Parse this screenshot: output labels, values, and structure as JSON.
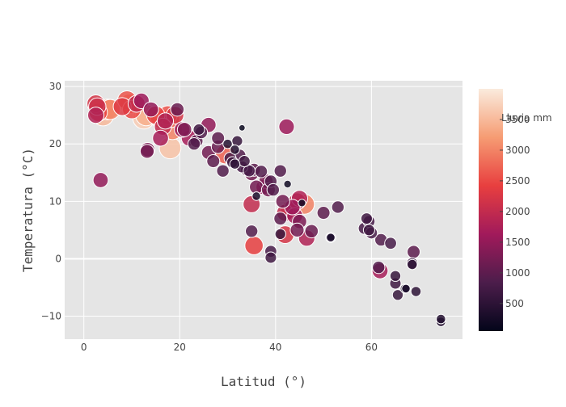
{
  "chart_data": {
    "type": "scatter",
    "title": "",
    "xlabel": "Latitud (°)",
    "ylabel": "Temperatura (°C)",
    "xlim": [
      -4,
      79
    ],
    "ylim": [
      -14,
      31
    ],
    "xticks": [
      0,
      20,
      40,
      60
    ],
    "yticks": [
      -10,
      0,
      10,
      20,
      30
    ],
    "grid": true,
    "background_color": "#e5e5e5",
    "colorbar": {
      "title": "Lluvia mm",
      "range": [
        50,
        4000
      ],
      "ticks": [
        500,
        1000,
        1500,
        2000,
        2500,
        3000,
        3500
      ],
      "colorscale": [
        "#03051a",
        "#4c1d4b",
        "#a11a5b",
        "#e83f3f",
        "#f69c73",
        "#faebdd"
      ]
    },
    "size_encodes": "Lluvia mm",
    "points": [
      [
        2.5,
        27,
        2200
      ],
      [
        2.8,
        26.5,
        2100
      ],
      [
        3,
        25.5,
        2400
      ],
      [
        4,
        25,
        3500
      ],
      [
        2.5,
        25,
        1800
      ],
      [
        5,
        26,
        3200
      ],
      [
        5.5,
        26,
        3000
      ],
      [
        3.5,
        13.7,
        1500
      ],
      [
        8,
        26.5,
        2300
      ],
      [
        9,
        27.6,
        2600
      ],
      [
        9.5,
        27,
        2900
      ],
      [
        10,
        26,
        2500
      ],
      [
        11,
        27,
        2000
      ],
      [
        12,
        27.5,
        1600
      ],
      [
        12.5,
        24.5,
        3700
      ],
      [
        13,
        25,
        3400
      ],
      [
        13.2,
        18.7,
        1200
      ],
      [
        13.3,
        19,
        1300
      ],
      [
        14,
        26,
        1500
      ],
      [
        15,
        25,
        2400
      ],
      [
        16,
        24.5,
        3000
      ],
      [
        16,
        21,
        1700
      ],
      [
        16.5,
        23,
        2000
      ],
      [
        17,
        24,
        1800
      ],
      [
        17.5,
        25,
        2600
      ],
      [
        18,
        24.5,
        2800
      ],
      [
        18,
        19.3,
        3600
      ],
      [
        18.5,
        22.5,
        3000
      ],
      [
        19,
        25,
        2200
      ],
      [
        19.5,
        26,
        1100
      ],
      [
        20.5,
        22.5,
        1600
      ],
      [
        21,
        22.5,
        1300
      ],
      [
        22,
        21,
        1700
      ],
      [
        23,
        20,
        900
      ],
      [
        23.5,
        20.5,
        1000
      ],
      [
        24,
        22.5,
        700
      ],
      [
        24.5,
        22,
        900
      ],
      [
        26,
        23.3,
        1500
      ],
      [
        26,
        18.5,
        1200
      ],
      [
        27,
        17,
        1000
      ],
      [
        28,
        19.5,
        1100
      ],
      [
        28,
        21,
        1000
      ],
      [
        29,
        15.3,
        900
      ],
      [
        29.5,
        18.2,
        2700
      ],
      [
        30,
        20,
        400
      ],
      [
        30.5,
        17.5,
        800
      ],
      [
        31,
        16.8,
        700
      ],
      [
        31.5,
        19,
        400
      ],
      [
        31.5,
        16.5,
        500
      ],
      [
        32,
        20.5,
        600
      ],
      [
        32.5,
        18,
        900
      ],
      [
        33,
        16,
        800
      ],
      [
        33,
        22.8,
        100
      ],
      [
        33.5,
        17,
        700
      ],
      [
        34,
        15.5,
        900
      ],
      [
        34.5,
        15.3,
        800
      ],
      [
        35,
        14.8,
        1200
      ],
      [
        35,
        9.5,
        2000
      ],
      [
        35,
        4.8,
        900
      ],
      [
        35.5,
        15.5,
        1000
      ],
      [
        35.5,
        2.3,
        2400
      ],
      [
        36,
        10.9,
        300
      ],
      [
        36,
        12.5,
        1200
      ],
      [
        37,
        15.2,
        900
      ],
      [
        37.5,
        12.5,
        1500
      ],
      [
        38,
        13.5,
        1300
      ],
      [
        38.5,
        12,
        1200
      ],
      [
        39,
        1.3,
        800
      ],
      [
        39,
        0.2,
        700
      ],
      [
        39,
        13.5,
        900
      ],
      [
        39.5,
        12,
        900
      ],
      [
        41,
        15.3,
        900
      ],
      [
        41,
        7,
        1000
      ],
      [
        41,
        4.3,
        600
      ],
      [
        41.5,
        10,
        1200
      ],
      [
        42,
        4.2,
        2200
      ],
      [
        42,
        8,
        2000
      ],
      [
        42.3,
        23,
        1600
      ],
      [
        42.5,
        13,
        200
      ],
      [
        43,
        8.5,
        2500
      ],
      [
        43.5,
        9,
        1600
      ],
      [
        44,
        7.5,
        1700
      ],
      [
        44.5,
        5,
        1200
      ],
      [
        44.5,
        10,
        2000
      ],
      [
        45,
        10.5,
        1800
      ],
      [
        45,
        6.5,
        1300
      ],
      [
        45.5,
        9.7,
        200
      ],
      [
        46,
        9.5,
        3000
      ],
      [
        46.5,
        3.6,
        1800
      ],
      [
        47.5,
        4.8,
        1100
      ],
      [
        50,
        8,
        1000
      ],
      [
        51.5,
        3.7,
        500
      ],
      [
        51.5,
        3.7,
        300
      ],
      [
        53,
        9,
        900
      ],
      [
        58.5,
        5.3,
        800
      ],
      [
        59,
        7,
        700
      ],
      [
        59.5,
        5,
        700
      ],
      [
        59.5,
        6.5,
        800
      ],
      [
        60,
        4.5,
        800
      ],
      [
        61.5,
        -1.5,
        900
      ],
      [
        61.8,
        -2.1,
        1700
      ],
      [
        62,
        3.3,
        900
      ],
      [
        64,
        2.7,
        800
      ],
      [
        65,
        -4.3,
        700
      ],
      [
        65,
        -3,
        600
      ],
      [
        65.5,
        -6.3,
        600
      ],
      [
        67,
        -5.2,
        400
      ],
      [
        67.2,
        -5.2,
        300
      ],
      [
        68.5,
        -0.8,
        700
      ],
      [
        68.5,
        -1,
        500
      ],
      [
        68.8,
        1.2,
        1000
      ],
      [
        69.3,
        -5.7,
        500
      ],
      [
        74.5,
        -11,
        400
      ],
      [
        74.5,
        -10.5,
        400
      ]
    ]
  }
}
